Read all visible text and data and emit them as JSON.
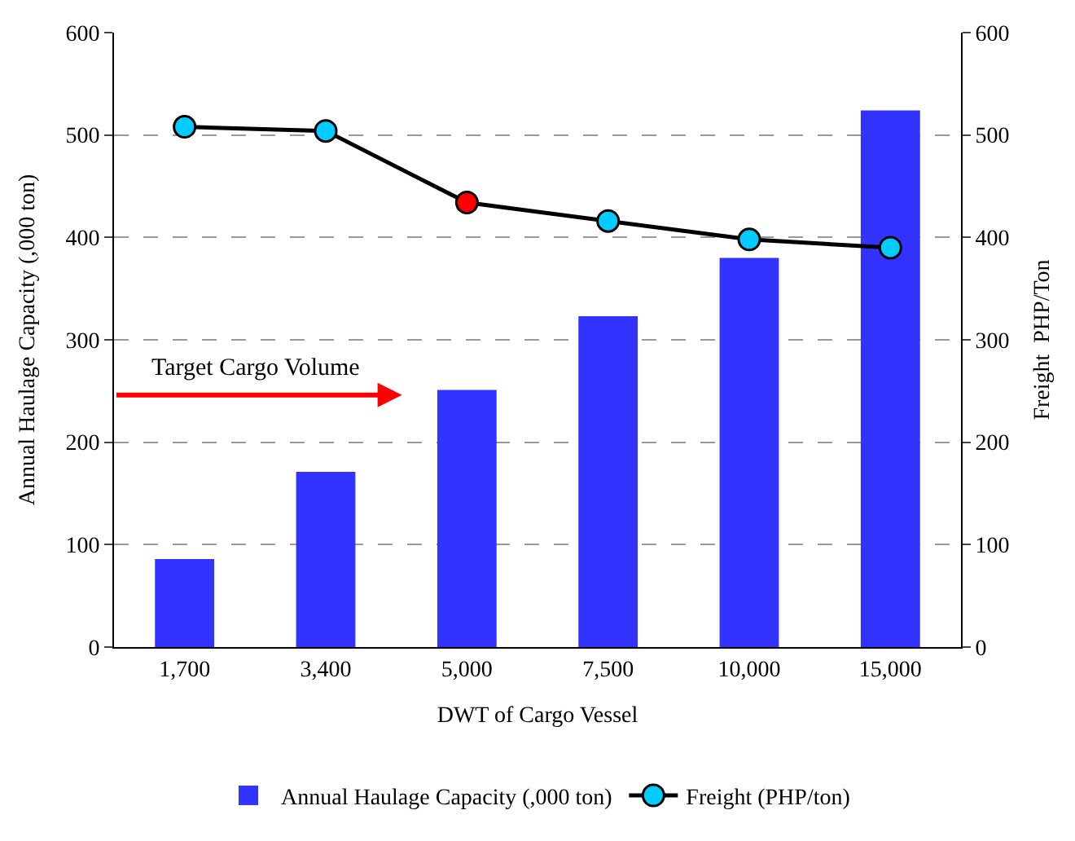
{
  "chart_data": {
    "type": "bar",
    "xlabel": "DWT of Cargo Vessel",
    "ylabel": "Annual Haulage Capacity (,000 ton)",
    "y2label": "Freight  PHP/Ton",
    "categories": [
      "1,700",
      "3,400",
      "5,000",
      "7,500",
      "10,000",
      "15,000"
    ],
    "series": [
      {
        "name": "Annual Haulage Capacity (,000 ton)",
        "color": "#3333ff",
        "values": [
          86,
          171,
          251,
          323,
          380,
          524
        ]
      },
      {
        "name": "Freight (PHP/ton)",
        "type": "line",
        "axis": "y2",
        "color": "#000000",
        "colors": [
          "#00ccff",
          "#00ccff",
          "#ff0000",
          "#00ccff",
          "#00ccff",
          "#00ccff"
        ],
        "marker": "circle",
        "values": [
          508,
          504,
          434,
          416,
          398,
          390
        ]
      }
    ],
    "ylim": [
      0,
      600
    ],
    "yticks": [
      0,
      100,
      200,
      300,
      400,
      500,
      600
    ],
    "y2lim": [
      0,
      600
    ],
    "y2ticks": [
      0,
      100,
      200,
      300,
      400,
      500,
      600
    ],
    "grid": "y",
    "legend": "bottom",
    "annotations": [
      "Target Cargo Volume"
    ]
  }
}
